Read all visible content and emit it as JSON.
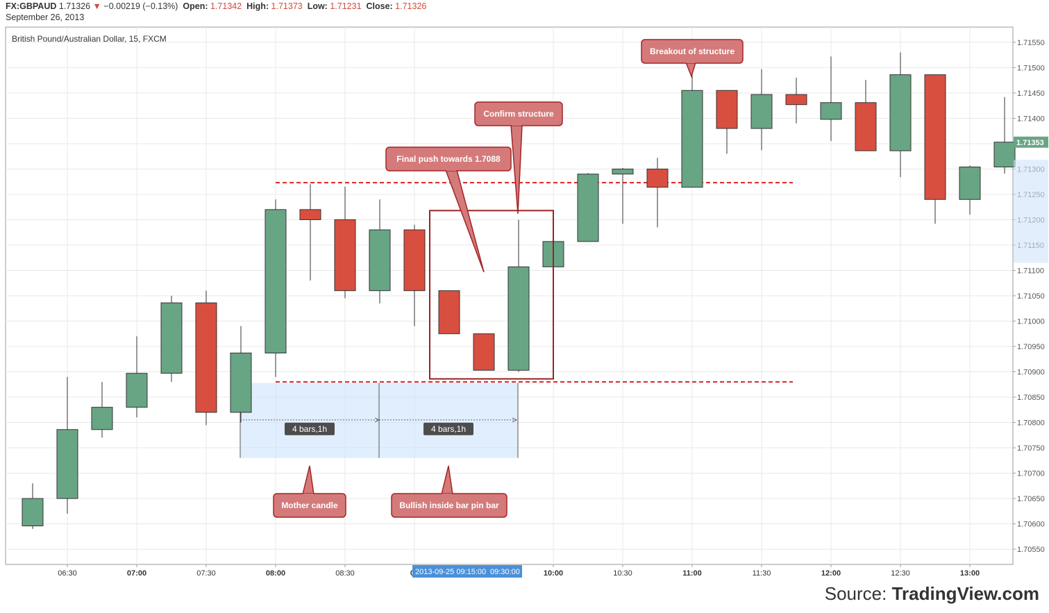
{
  "header": {
    "symbol": "FX:GBPAUD",
    "last": "1.71326",
    "change": "−0.00219 (−0.13%)",
    "open_label": "Open:",
    "open": "1.71342",
    "high_label": "High:",
    "high": "1.71373",
    "low_label": "Low:",
    "low": "1.71231",
    "close_label": "Close:",
    "close": "1.71326",
    "date": "September 26, 2013"
  },
  "chart_title": "British Pound/Australian Dollar, 15, FXCM",
  "source": {
    "prefix": "Source:",
    "brand": "TradingView.com"
  },
  "colors": {
    "up": "#68a585",
    "down": "#d94f3f",
    "grid": "#e8e8e8",
    "annotation_fill": "#d47a7a",
    "annotation_stroke": "#a32424",
    "dashed": "#e02020"
  },
  "chart_data": {
    "type": "candlestick",
    "interval": "15",
    "ylim": [
      1.7052,
      1.7158
    ],
    "y_ticks": [
      "1.70550",
      "1.70600",
      "1.70650",
      "1.70700",
      "1.70750",
      "1.70800",
      "1.70850",
      "1.70900",
      "1.70950",
      "1.71000",
      "1.71050",
      "1.71100",
      "1.71150",
      "1.71200",
      "1.71250",
      "1.71300",
      "1.71350",
      "1.71400",
      "1.71450",
      "1.71500",
      "1.71550"
    ],
    "x_labels": [
      {
        "i": 1,
        "label": "06:30",
        "bold": false
      },
      {
        "i": 3,
        "label": "07:00",
        "bold": true
      },
      {
        "i": 5,
        "label": "07:30",
        "bold": false
      },
      {
        "i": 7,
        "label": "08:00",
        "bold": true
      },
      {
        "i": 9,
        "label": "08:30",
        "bold": false
      },
      {
        "i": 11,
        "label": "09",
        "bold": true
      },
      {
        "i": 15,
        "label": "10:00",
        "bold": true
      },
      {
        "i": 17,
        "label": "10:30",
        "bold": false
      },
      {
        "i": 19,
        "label": "11:00",
        "bold": true
      },
      {
        "i": 21,
        "label": "11:30",
        "bold": false
      },
      {
        "i": 23,
        "label": "12:00",
        "bold": true
      },
      {
        "i": 25,
        "label": "12:30",
        "bold": false
      },
      {
        "i": 27,
        "label": "13:00",
        "bold": true
      }
    ],
    "candles": [
      {
        "o": 1.70596,
        "h": 1.7068,
        "l": 1.7059,
        "c": 1.7065
      },
      {
        "o": 1.7065,
        "h": 1.7089,
        "l": 1.7062,
        "c": 1.70786
      },
      {
        "o": 1.70786,
        "h": 1.7088,
        "l": 1.7077,
        "c": 1.7083
      },
      {
        "o": 1.7083,
        "h": 1.7097,
        "l": 1.7081,
        "c": 1.70897
      },
      {
        "o": 1.70897,
        "h": 1.7105,
        "l": 1.7088,
        "c": 1.71036
      },
      {
        "o": 1.71036,
        "h": 1.7106,
        "l": 1.70795,
        "c": 1.7082
      },
      {
        "o": 1.7082,
        "h": 1.7099,
        "l": 1.708,
        "c": 1.70937
      },
      {
        "o": 1.70937,
        "h": 1.7124,
        "l": 1.7089,
        "c": 1.7122
      },
      {
        "o": 1.7122,
        "h": 1.7127,
        "l": 1.7108,
        "c": 1.712
      },
      {
        "o": 1.712,
        "h": 1.71265,
        "l": 1.71045,
        "c": 1.7106
      },
      {
        "o": 1.7106,
        "h": 1.7124,
        "l": 1.71035,
        "c": 1.7118
      },
      {
        "o": 1.7118,
        "h": 1.7119,
        "l": 1.7099,
        "c": 1.7106
      },
      {
        "o": 1.7106,
        "h": 1.7106,
        "l": 1.70975,
        "c": 1.70975
      },
      {
        "o": 1.70975,
        "h": 1.70975,
        "l": 1.70903,
        "c": 1.70903
      },
      {
        "o": 1.70903,
        "h": 1.712,
        "l": 1.709,
        "c": 1.71107
      },
      {
        "o": 1.71107,
        "h": 1.71157,
        "l": 1.71107,
        "c": 1.71157
      },
      {
        "o": 1.71157,
        "h": 1.71292,
        "l": 1.71157,
        "c": 1.7129
      },
      {
        "o": 1.7129,
        "h": 1.71302,
        "l": 1.71192,
        "c": 1.713
      },
      {
        "o": 1.713,
        "h": 1.71322,
        "l": 1.71185,
        "c": 1.71264
      },
      {
        "o": 1.71264,
        "h": 1.71485,
        "l": 1.71264,
        "c": 1.71455
      },
      {
        "o": 1.71455,
        "h": 1.71455,
        "l": 1.7133,
        "c": 1.7138
      },
      {
        "o": 1.7138,
        "h": 1.71497,
        "l": 1.71337,
        "c": 1.71447
      },
      {
        "o": 1.71447,
        "h": 1.7148,
        "l": 1.7139,
        "c": 1.71427
      },
      {
        "o": 1.71398,
        "h": 1.71522,
        "l": 1.71355,
        "c": 1.71431
      },
      {
        "o": 1.71431,
        "h": 1.71476,
        "l": 1.71336,
        "c": 1.71336
      },
      {
        "o": 1.71336,
        "h": 1.7153,
        "l": 1.71284,
        "c": 1.71486
      },
      {
        "o": 1.71486,
        "h": 1.71486,
        "l": 1.71192,
        "c": 1.7124
      },
      {
        "o": 1.7124,
        "h": 1.71307,
        "l": 1.7121,
        "c": 1.71304
      },
      {
        "o": 1.71304,
        "h": 1.71442,
        "l": 1.71291,
        "c": 1.71353
      }
    ],
    "last_price": "1.71353",
    "support_level": 1.7088,
    "resistance_level": 1.71273,
    "highlight_box": {
      "from_i": 12,
      "to_i": 14,
      "top": 1.71218,
      "bottom": 1.70886
    },
    "date_range_label": {
      "date": "2013-09-25 09:15:00",
      "time": "09:30:00"
    },
    "bar_count_labels": [
      "4 bars,1h",
      "4 bars,1h"
    ],
    "annotations": [
      {
        "key": "breakout",
        "text": "Breakout of structure"
      },
      {
        "key": "confirm",
        "text": "Confirm structure"
      },
      {
        "key": "final_push",
        "text": "Final push towards 1.7088"
      },
      {
        "key": "mother",
        "text": "Mother candle"
      },
      {
        "key": "inside",
        "text": "Bullish inside bar pin bar"
      }
    ]
  }
}
